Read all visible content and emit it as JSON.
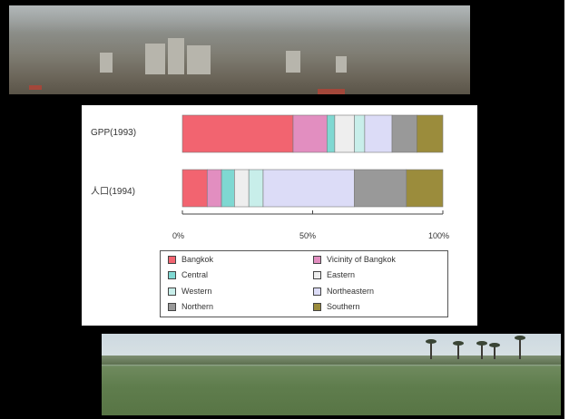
{
  "chart_data": {
    "type": "bar",
    "stacked": true,
    "orientation": "horizontal",
    "categories": [
      "GPP(1993)",
      "人口(1994)"
    ],
    "series": [
      {
        "name": "Bangkok",
        "color": "#f26470",
        "values": [
          42.5,
          9.5
        ]
      },
      {
        "name": "Vicinity of Bangkok",
        "color": "#e28ec0",
        "values": [
          13.0,
          5.5
        ]
      },
      {
        "name": "Central",
        "color": "#7fd8d2",
        "values": [
          3.0,
          5.0
        ]
      },
      {
        "name": "Eastern",
        "color": "#eeeeee",
        "values": [
          7.5,
          5.5
        ]
      },
      {
        "name": "Western",
        "color": "#c8eeea",
        "values": [
          4.0,
          5.5
        ]
      },
      {
        "name": "Northeastern",
        "color": "#dcdcf7",
        "values": [
          10.5,
          35.0
        ]
      },
      {
        "name": "Northern",
        "color": "#999999",
        "values": [
          9.5,
          20.0
        ]
      },
      {
        "name": "Southern",
        "color": "#9b8c3c",
        "values": [
          10.0,
          14.0
        ]
      }
    ],
    "xlim": [
      0,
      100
    ],
    "xticks": [
      "0%",
      "50%",
      "100%"
    ],
    "legend_position": "bottom",
    "grid": false
  },
  "legend_labels": {
    "bangkok": "Bangkok",
    "vicinity": "Vicinity of Bangkok",
    "central": "Central",
    "eastern": "Eastern",
    "western": "Western",
    "northeastern": "Northeastern",
    "northern": "Northern",
    "southern": "Southern"
  },
  "row_labels": {
    "gpp": "GPP(1993)",
    "population": "人口(1994)"
  },
  "tick_labels": {
    "t0": "0%",
    "t50": "50%",
    "t100": "100%"
  },
  "colors": {
    "frame": "#000000",
    "panel": "#ffffff"
  }
}
